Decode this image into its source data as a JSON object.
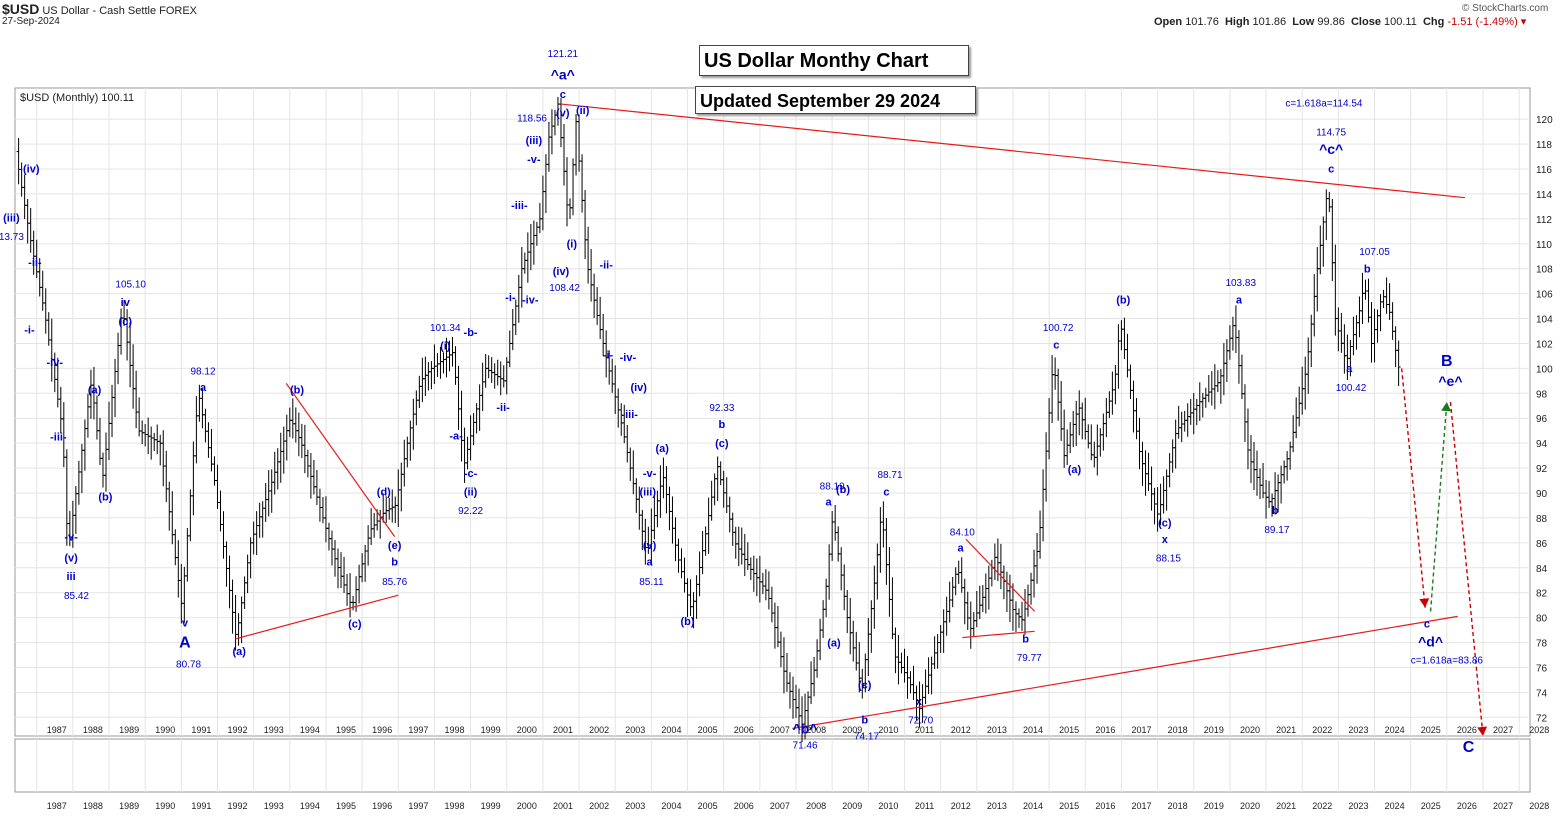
{
  "header": {
    "symbol": "$USD",
    "description": "US Dollar - Cash Settle FOREX",
    "date": "27-Sep-2024",
    "ohlc": {
      "open_label": "Open",
      "open": "101.76",
      "high_label": "High",
      "high": "101.86",
      "low_label": "Low",
      "low": "99.86",
      "close_label": "Close",
      "close": "100.11",
      "chg_label": "Chg",
      "chg": "-1.51 (-1.49%)"
    },
    "credit": "© StockCharts.com"
  },
  "annotations": {
    "title": "US Dollar Monthy Chart",
    "subtitle": "Updated September 29 2024"
  },
  "colors": {
    "price_bars": "#000000",
    "wave_labels": "#0000cc",
    "trendlines": "#e8191c",
    "projection_down": "#cc0000",
    "projection_up": "#1a7a1a",
    "grid": "#e4e4e4"
  },
  "chart_data": {
    "type": "ohlc",
    "legend": "$USD (Monthly) 100.11",
    "x_ticks": [
      "1987",
      "1988",
      "1989",
      "1990",
      "1991",
      "1992",
      "1993",
      "1994",
      "1995",
      "1996",
      "1997",
      "1998",
      "1999",
      "2000",
      "2001",
      "2002",
      "2003",
      "2004",
      "2005",
      "2006",
      "2007",
      "2008",
      "2009",
      "2010",
      "2011",
      "2012",
      "2013",
      "2014",
      "2015",
      "2016",
      "2017",
      "2018",
      "2019",
      "2020",
      "2021",
      "2022",
      "2023",
      "2024",
      "2025",
      "2026",
      "2027",
      "2028"
    ],
    "y_ticks": [
      72,
      74,
      76,
      78,
      80,
      82,
      84,
      86,
      88,
      90,
      92,
      94,
      96,
      98,
      100,
      102,
      104,
      106,
      108,
      110,
      112,
      114,
      116,
      118,
      120
    ],
    "xlim": [
      1986.4,
      2028.3
    ],
    "ylim": [
      70.5,
      122.5
    ],
    "scale": "linear",
    "grid": true,
    "price_anchors": [
      [
        1986.5,
        117.4
      ],
      [
        1986.9,
        110.5
      ],
      [
        1987.3,
        104.5
      ],
      [
        1987.8,
        95
      ],
      [
        1987.95,
        85.42
      ],
      [
        1988.6,
        99
      ],
      [
        1988.9,
        91
      ],
      [
        1989.4,
        103.5
      ],
      [
        1989.45,
        105.1
      ],
      [
        1989.9,
        95
      ],
      [
        1990.5,
        94
      ],
      [
        1991.1,
        80.78
      ],
      [
        1991.55,
        98.12
      ],
      [
        1992.0,
        91
      ],
      [
        1992.6,
        78.3
      ],
      [
        1993.0,
        86
      ],
      [
        1993.6,
        91
      ],
      [
        1994.1,
        96
      ],
      [
        1994.4,
        94
      ],
      [
        1994.8,
        90
      ],
      [
        1995.3,
        85
      ],
      [
        1995.8,
        80.8
      ],
      [
        1996.3,
        87
      ],
      [
        1996.7,
        88.5
      ],
      [
        1997.0,
        89
      ],
      [
        1997.4,
        95
      ],
      [
        1997.7,
        99
      ],
      [
        1998.0,
        100
      ],
      [
        1998.6,
        101.3
      ],
      [
        1998.9,
        92.2
      ],
      [
        1999.5,
        100
      ],
      [
        2000.0,
        99
      ],
      [
        2000.5,
        108
      ],
      [
        2001.0,
        112
      ],
      [
        2001.25,
        118.56
      ],
      [
        2001.5,
        121.21
      ],
      [
        2001.8,
        111.5
      ],
      [
        2002.0,
        119.8
      ],
      [
        2002.3,
        108.42
      ],
      [
        2002.6,
        104
      ],
      [
        2002.9,
        100
      ],
      [
        2003.3,
        95
      ],
      [
        2003.7,
        89
      ],
      [
        2003.95,
        85.11
      ],
      [
        2004.4,
        91.5
      ],
      [
        2004.8,
        85
      ],
      [
        2005.2,
        80.5
      ],
      [
        2005.6,
        87
      ],
      [
        2005.9,
        92.33
      ],
      [
        2006.4,
        86
      ],
      [
        2006.8,
        84
      ],
      [
        2007.3,
        82
      ],
      [
        2007.8,
        75
      ],
      [
        2008.25,
        71.46
      ],
      [
        2008.6,
        76
      ],
      [
        2008.9,
        82
      ],
      [
        2009.1,
        88.19
      ],
      [
        2009.5,
        80
      ],
      [
        2009.9,
        74.17
      ],
      [
        2010.3,
        84
      ],
      [
        2010.45,
        88.71
      ],
      [
        2010.8,
        77
      ],
      [
        2011.2,
        75
      ],
      [
        2011.5,
        72.7
      ],
      [
        2011.9,
        77
      ],
      [
        2012.3,
        81
      ],
      [
        2012.55,
        84.1
      ],
      [
        2012.9,
        79
      ],
      [
        2013.3,
        82
      ],
      [
        2013.6,
        85
      ],
      [
        2014.1,
        80.5
      ],
      [
        2014.35,
        79.77
      ],
      [
        2014.8,
        86
      ],
      [
        2015.2,
        100.72
      ],
      [
        2015.5,
        93
      ],
      [
        2015.9,
        97
      ],
      [
        2016.3,
        92.5
      ],
      [
        2016.9,
        99
      ],
      [
        2017.05,
        103.8
      ],
      [
        2017.6,
        93
      ],
      [
        2018.1,
        88.15
      ],
      [
        2018.6,
        95
      ],
      [
        2019.3,
        97.5
      ],
      [
        2019.8,
        99
      ],
      [
        2020.2,
        103.83
      ],
      [
        2020.6,
        93
      ],
      [
        2021.0,
        90
      ],
      [
        2021.2,
        89.17
      ],
      [
        2021.7,
        93
      ],
      [
        2022.2,
        100
      ],
      [
        2022.5,
        108
      ],
      [
        2022.8,
        114.75
      ],
      [
        2023.0,
        104
      ],
      [
        2023.3,
        100.42
      ],
      [
        2023.7,
        105
      ],
      [
        2023.8,
        107.05
      ],
      [
        2024.0,
        102
      ],
      [
        2024.3,
        106
      ],
      [
        2024.5,
        104.5
      ],
      [
        2024.74,
        100.11
      ]
    ],
    "trendlines": [
      {
        "from": [
          2001.5,
          121.21
        ],
        "to": [
          2026.5,
          113.7
        ]
      },
      {
        "from": [
          2007.9,
          71.1
        ],
        "to": [
          2026.3,
          80.1
        ]
      },
      {
        "from": [
          1992.5,
          78.3
        ],
        "to": [
          1997.0,
          81.8
        ]
      },
      {
        "from": [
          1993.9,
          98.8
        ],
        "to": [
          1996.9,
          86.5
        ]
      },
      {
        "from": [
          2012.6,
          78.4
        ],
        "to": [
          2014.6,
          78.9
        ]
      },
      {
        "from": [
          2012.7,
          86.3
        ],
        "to": [
          2014.6,
          80.5
        ]
      }
    ],
    "projections": [
      {
        "color": "projection_down",
        "from": [
          2024.75,
          100
        ],
        "to": [
          2025.4,
          80.8
        ]
      },
      {
        "color": "projection_up",
        "from": [
          2025.55,
          80.5
        ],
        "to": [
          2026.0,
          97.3
        ]
      },
      {
        "color": "projection_down",
        "from": [
          2026.1,
          97.3
        ],
        "to": [
          2027.0,
          70.5
        ]
      }
    ],
    "wave_labels": [
      {
        "text": "(iv)",
        "x": 1986.85,
        "y": 115.7
      },
      {
        "text": "(iii)",
        "x": 1986.3,
        "y": 111.8
      },
      {
        "text": "13.73",
        "x": 1986.3,
        "y": 110.3
      },
      {
        "text": "-ii-",
        "x": 1986.95,
        "y": 108.2
      },
      {
        "text": "-i-",
        "x": 1986.8,
        "y": 102.8
      },
      {
        "text": "-iv-",
        "x": 1987.5,
        "y": 100.2
      },
      {
        "text": "-iii-",
        "x": 1987.6,
        "y": 94.2
      },
      {
        "text": "-v-",
        "x": 1987.95,
        "y": 86.2
      },
      {
        "text": "(v)",
        "x": 1987.95,
        "y": 84.5
      },
      {
        "text": "iii",
        "x": 1987.95,
        "y": 83.0
      },
      {
        "text": "85.42",
        "x": 1988.1,
        "y": 81.5
      },
      {
        "text": "(a)",
        "x": 1988.6,
        "y": 98.0
      },
      {
        "text": "(b)",
        "x": 1988.9,
        "y": 89.4
      },
      {
        "text": "105.10",
        "x": 1989.6,
        "y": 106.5
      },
      {
        "text": "iv",
        "x": 1989.45,
        "y": 105.0
      },
      {
        "text": "(c)",
        "x": 1989.45,
        "y": 103.5
      },
      {
        "text": "98.12",
        "x": 1991.6,
        "y": 99.5
      },
      {
        "text": "a",
        "x": 1991.6,
        "y": 98.2
      },
      {
        "text": "v",
        "x": 1991.1,
        "y": 79.3
      },
      {
        "text": "A",
        "x": 1991.1,
        "y": 77.6
      },
      {
        "text": "80.78",
        "x": 1991.2,
        "y": 76.0
      },
      {
        "text": "(a)",
        "x": 1992.6,
        "y": 77.0
      },
      {
        "text": "(b)",
        "x": 1994.2,
        "y": 98.0
      },
      {
        "text": "(c)",
        "x": 1995.8,
        "y": 79.2
      },
      {
        "text": "(d)",
        "x": 1996.6,
        "y": 89.8
      },
      {
        "text": "(e)",
        "x": 1996.9,
        "y": 85.5
      },
      {
        "text": "b",
        "x": 1996.9,
        "y": 84.2
      },
      {
        "text": "85.76",
        "x": 1996.9,
        "y": 82.6
      },
      {
        "text": "101.34",
        "x": 1998.3,
        "y": 103.0
      },
      {
        "text": "(i)",
        "x": 1998.3,
        "y": 101.5
      },
      {
        "text": "-b-",
        "x": 1999.0,
        "y": 102.6
      },
      {
        "text": "-a-",
        "x": 1998.6,
        "y": 94.3
      },
      {
        "text": "-c-",
        "x": 1999.0,
        "y": 91.3
      },
      {
        "text": "(ii)",
        "x": 1999.0,
        "y": 89.8
      },
      {
        "text": "92.22",
        "x": 1999.0,
        "y": 88.3
      },
      {
        "text": "-ii-",
        "x": 1999.9,
        "y": 96.6
      },
      {
        "text": "-i-",
        "x": 2000.1,
        "y": 105.4
      },
      {
        "text": "-iii-",
        "x": 2000.35,
        "y": 112.8
      },
      {
        "text": "-iv-",
        "x": 2000.65,
        "y": 105.2
      },
      {
        "text": "(iii)",
        "x": 2000.75,
        "y": 118.0
      },
      {
        "text": "-v-",
        "x": 2000.75,
        "y": 116.5
      },
      {
        "text": "118.56",
        "x": 2000.7,
        "y": 119.8
      },
      {
        "text": "121.21",
        "x": 2001.55,
        "y": 125.0
      },
      {
        "text": "^a^",
        "x": 2001.55,
        "y": 123.2
      },
      {
        "text": "c",
        "x": 2001.55,
        "y": 121.7
      },
      {
        "text": "(v)",
        "x": 2001.55,
        "y": 120.2
      },
      {
        "text": "(ii)",
        "x": 2002.1,
        "y": 120.4
      },
      {
        "text": "(i)",
        "x": 2001.8,
        "y": 109.7
      },
      {
        "text": "(iv)",
        "x": 2001.5,
        "y": 107.5
      },
      {
        "text": "108.42",
        "x": 2001.6,
        "y": 106.2
      },
      {
        "text": "-ii-",
        "x": 2002.75,
        "y": 108.0
      },
      {
        "text": "-i-",
        "x": 2002.8,
        "y": 100.8
      },
      {
        "text": "-iv-",
        "x": 2003.35,
        "y": 100.6
      },
      {
        "text": "(iv)",
        "x": 2003.65,
        "y": 98.2
      },
      {
        "text": "-iii-",
        "x": 2003.4,
        "y": 96.0
      },
      {
        "text": "-v-",
        "x": 2003.95,
        "y": 91.3
      },
      {
        "text": "(iii)",
        "x": 2003.9,
        "y": 89.8
      },
      {
        "text": "(a)",
        "x": 2004.3,
        "y": 93.3
      },
      {
        "text": "92.33",
        "x": 2005.95,
        "y": 96.6
      },
      {
        "text": "b",
        "x": 2005.95,
        "y": 95.2
      },
      {
        "text": "(c)",
        "x": 2005.95,
        "y": 93.7
      },
      {
        "text": "(v)",
        "x": 2003.95,
        "y": 85.5
      },
      {
        "text": "a",
        "x": 2003.95,
        "y": 84.2
      },
      {
        "text": "85.11",
        "x": 2004.0,
        "y": 82.6
      },
      {
        "text": "(b)",
        "x": 2005.0,
        "y": 79.4
      },
      {
        "text": "88.19",
        "x": 2009.0,
        "y": 90.3
      },
      {
        "text": "a",
        "x": 2008.9,
        "y": 89.0
      },
      {
        "text": "(b)",
        "x": 2009.3,
        "y": 90.0
      },
      {
        "text": "88.71",
        "x": 2010.6,
        "y": 91.2
      },
      {
        "text": "c",
        "x": 2010.5,
        "y": 89.8
      },
      {
        "text": "(a)",
        "x": 2009.05,
        "y": 77.7
      },
      {
        "text": "(c)",
        "x": 2009.9,
        "y": 74.3
      },
      {
        "text": "b",
        "x": 2009.9,
        "y": 71.5
      },
      {
        "text": "74.17",
        "x": 2009.95,
        "y": 70.2
      },
      {
        "text": "^b^",
        "x": 2008.25,
        "y": 70.7
      },
      {
        "text": "71.46",
        "x": 2008.25,
        "y": 69.5
      },
      {
        "text": "x",
        "x": 2011.4,
        "y": 73.0
      },
      {
        "text": "72.70",
        "x": 2011.45,
        "y": 71.5
      },
      {
        "text": "84.10",
        "x": 2012.6,
        "y": 86.6
      },
      {
        "text": "a",
        "x": 2012.55,
        "y": 85.3
      },
      {
        "text": "b",
        "x": 2014.35,
        "y": 78.0
      },
      {
        "text": "79.77",
        "x": 2014.45,
        "y": 76.5
      },
      {
        "text": "100.72",
        "x": 2015.25,
        "y": 103.0
      },
      {
        "text": "c",
        "x": 2015.2,
        "y": 101.6
      },
      {
        "text": "(a)",
        "x": 2015.7,
        "y": 91.6
      },
      {
        "text": "(b)",
        "x": 2017.05,
        "y": 105.2
      },
      {
        "text": "(c)",
        "x": 2018.2,
        "y": 87.3
      },
      {
        "text": "x",
        "x": 2018.2,
        "y": 86.0
      },
      {
        "text": "88.15",
        "x": 2018.3,
        "y": 84.5
      },
      {
        "text": "103.83",
        "x": 2020.3,
        "y": 106.6
      },
      {
        "text": "a",
        "x": 2020.25,
        "y": 105.2
      },
      {
        "text": "b",
        "x": 2021.25,
        "y": 88.3
      },
      {
        "text": "89.17",
        "x": 2021.3,
        "y": 86.8
      },
      {
        "text": "c=1.618a=114.54",
        "x": 2022.6,
        "y": 121.0
      },
      {
        "text": "114.75",
        "x": 2022.8,
        "y": 118.7
      },
      {
        "text": "^c^",
        "x": 2022.8,
        "y": 117.2
      },
      {
        "text": "c",
        "x": 2022.8,
        "y": 115.7
      },
      {
        "text": "107.05",
        "x": 2024.0,
        "y": 109.1
      },
      {
        "text": "b",
        "x": 2023.8,
        "y": 107.7
      },
      {
        "text": "a",
        "x": 2023.3,
        "y": 99.7
      },
      {
        "text": "100.42",
        "x": 2023.35,
        "y": 98.2
      },
      {
        "text": "B",
        "x": 2026.0,
        "y": 100.2
      },
      {
        "text": "^e^",
        "x": 2026.1,
        "y": 98.6
      },
      {
        "text": "c",
        "x": 2025.45,
        "y": 79.2
      },
      {
        "text": "^d^",
        "x": 2025.55,
        "y": 77.7
      },
      {
        "text": "c=1.618a=83.86",
        "x": 2026.0,
        "y": 76.3
      },
      {
        "text": "C",
        "x": 2026.6,
        "y": 69.2
      }
    ]
  }
}
